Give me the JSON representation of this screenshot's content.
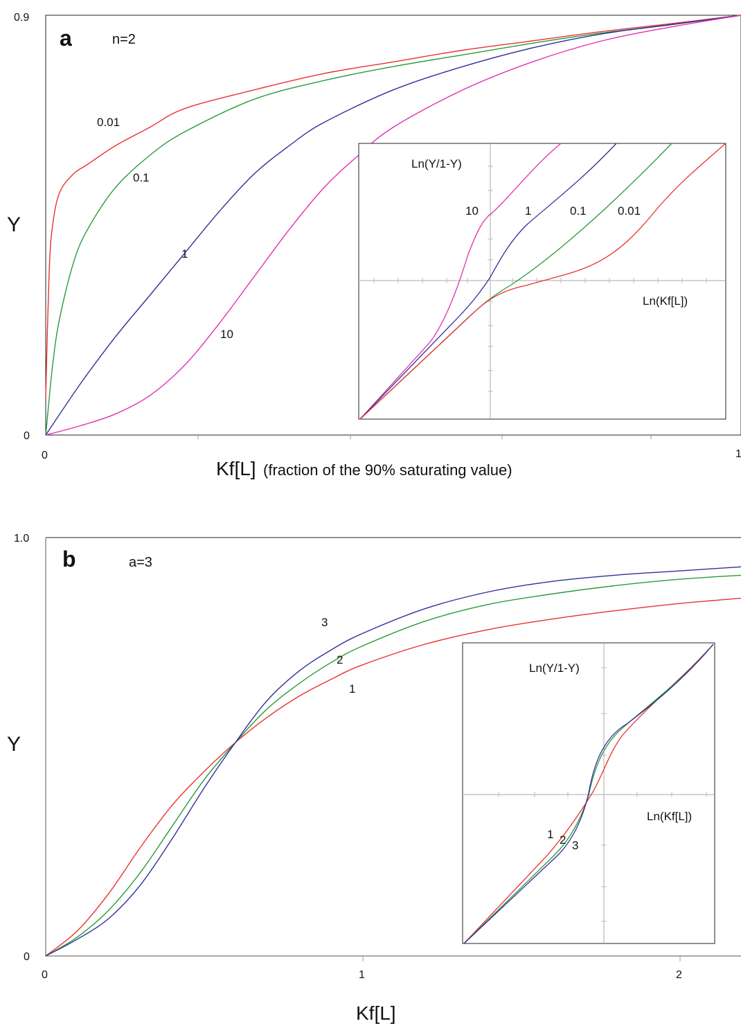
{
  "chart_data": [
    {
      "panel": "a",
      "type": "line",
      "parameter_label": "n=2",
      "ylabel": "Y",
      "xlabel_main": "Kf[L]",
      "xlabel_note": "(fraction of the 90% saturating value)",
      "xlim": [
        0,
        1
      ],
      "ylim": [
        0,
        0.9
      ],
      "x_ticks": [
        "0",
        "1"
      ],
      "y_ticks": [
        "0",
        "0.9"
      ],
      "grid": false,
      "series": [
        {
          "name": "0.01",
          "color": "#e8312f",
          "x": [
            0,
            0.005,
            0.01,
            0.02,
            0.04,
            0.06,
            0.1,
            0.15,
            0.2,
            0.3,
            0.4,
            0.5,
            0.6,
            0.7,
            0.8,
            0.9,
            1.0
          ],
          "y": [
            0.08,
            0.35,
            0.45,
            0.52,
            0.56,
            0.58,
            0.62,
            0.66,
            0.7,
            0.74,
            0.775,
            0.8,
            0.825,
            0.845,
            0.865,
            0.882,
            0.9
          ]
        },
        {
          "name": "0.1",
          "color": "#2a9a3a",
          "x": [
            0,
            0.01,
            0.02,
            0.04,
            0.06,
            0.1,
            0.15,
            0.2,
            0.3,
            0.4,
            0.5,
            0.6,
            0.7,
            0.8,
            0.9,
            1.0
          ],
          "y": [
            0,
            0.15,
            0.25,
            0.37,
            0.44,
            0.53,
            0.6,
            0.65,
            0.72,
            0.76,
            0.79,
            0.815,
            0.84,
            0.862,
            0.88,
            0.9
          ]
        },
        {
          "name": "1",
          "color": "#2e2f9a",
          "x": [
            0,
            0.05,
            0.1,
            0.15,
            0.2,
            0.25,
            0.3,
            0.35,
            0.4,
            0.5,
            0.6,
            0.7,
            0.8,
            0.9,
            1.0
          ],
          "y": [
            0,
            0.11,
            0.21,
            0.3,
            0.39,
            0.48,
            0.56,
            0.62,
            0.67,
            0.74,
            0.79,
            0.83,
            0.86,
            0.88,
            0.9
          ]
        },
        {
          "name": "10",
          "color": "#e030b0",
          "x": [
            0,
            0.05,
            0.1,
            0.15,
            0.2,
            0.25,
            0.3,
            0.35,
            0.4,
            0.45,
            0.5,
            0.6,
            0.7,
            0.8,
            0.9,
            1.0
          ],
          "y": [
            0,
            0.02,
            0.045,
            0.085,
            0.15,
            0.24,
            0.34,
            0.44,
            0.53,
            0.6,
            0.66,
            0.74,
            0.8,
            0.845,
            0.875,
            0.9
          ]
        }
      ],
      "inset": {
        "ylabel": "Ln(Y/1-Y)",
        "xlabel": "Ln(Kf[L])",
        "curve_labels": [
          "10",
          "1",
          "0.1",
          "0.01"
        ]
      }
    },
    {
      "panel": "b",
      "type": "line",
      "parameter_label": "a=3",
      "ylabel": "Y",
      "xlabel_main": "Kf[L]",
      "xlim": [
        0,
        2.2
      ],
      "ylim": [
        0,
        1.0
      ],
      "x_ticks": [
        "0",
        "1",
        "2"
      ],
      "y_ticks": [
        "0",
        "1.0"
      ],
      "grid": false,
      "series": [
        {
          "name": "1",
          "color": "#e8312f",
          "x": [
            0,
            0.1,
            0.2,
            0.3,
            0.4,
            0.5,
            0.6,
            0.7,
            0.8,
            0.9,
            1.0,
            1.2,
            1.4,
            1.6,
            1.8,
            2.0,
            2.2
          ],
          "y": [
            0,
            0.06,
            0.15,
            0.26,
            0.36,
            0.44,
            0.51,
            0.57,
            0.62,
            0.66,
            0.695,
            0.745,
            0.78,
            0.805,
            0.825,
            0.842,
            0.855
          ]
        },
        {
          "name": "2",
          "color": "#2a9a3a",
          "x": [
            0,
            0.1,
            0.2,
            0.3,
            0.4,
            0.5,
            0.6,
            0.7,
            0.8,
            0.9,
            1.0,
            1.2,
            1.4,
            1.6,
            1.8,
            2.0,
            2.2
          ],
          "y": [
            0,
            0.045,
            0.11,
            0.2,
            0.31,
            0.42,
            0.51,
            0.59,
            0.65,
            0.7,
            0.74,
            0.8,
            0.84,
            0.865,
            0.885,
            0.9,
            0.91
          ]
        },
        {
          "name": "3",
          "color": "#2e2f9a",
          "x": [
            0,
            0.1,
            0.2,
            0.3,
            0.4,
            0.5,
            0.6,
            0.7,
            0.8,
            0.9,
            1.0,
            1.2,
            1.4,
            1.6,
            1.8,
            2.0,
            2.2
          ],
          "y": [
            0,
            0.04,
            0.09,
            0.17,
            0.28,
            0.4,
            0.51,
            0.61,
            0.68,
            0.73,
            0.77,
            0.83,
            0.87,
            0.895,
            0.91,
            0.92,
            0.93
          ]
        }
      ],
      "inset": {
        "ylabel": "Ln(Y/1-Y)",
        "xlabel": "Ln(Kf[L])",
        "curve_labels": [
          "1",
          "2",
          "3"
        ]
      }
    }
  ]
}
